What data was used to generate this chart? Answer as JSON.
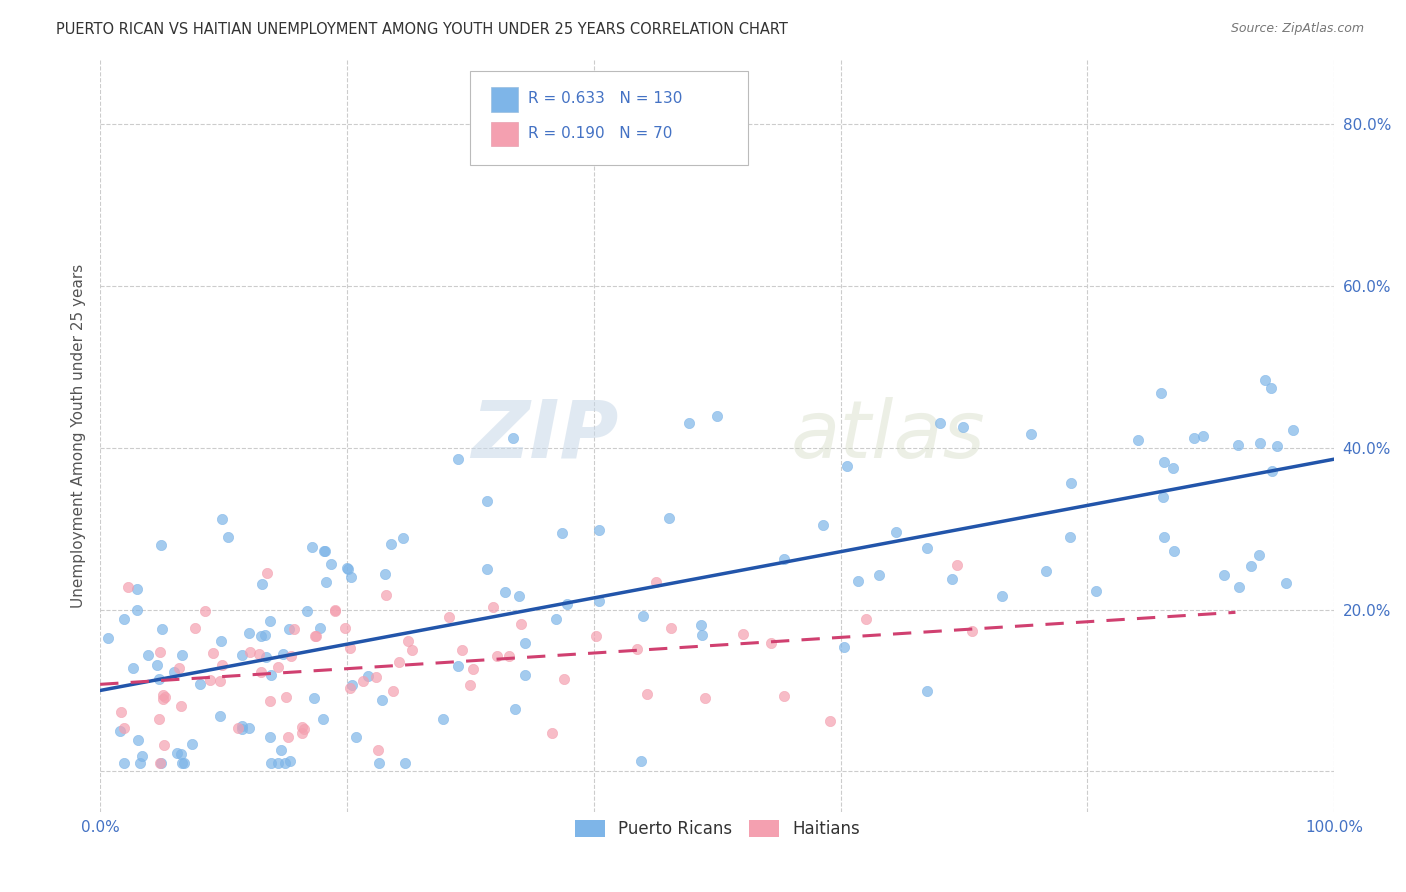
{
  "title": "PUERTO RICAN VS HAITIAN UNEMPLOYMENT AMONG YOUTH UNDER 25 YEARS CORRELATION CHART",
  "source": "Source: ZipAtlas.com",
  "ylabel": "Unemployment Among Youth under 25 years",
  "xlim": [
    0,
    1.0
  ],
  "ylim": [
    -0.05,
    0.88
  ],
  "xticks": [
    0.0,
    0.2,
    0.4,
    0.6,
    0.8,
    1.0
  ],
  "yticks": [
    0.0,
    0.2,
    0.4,
    0.6,
    0.8
  ],
  "pr_color": "#7EB5E8",
  "pr_color_line": "#2255AA",
  "haiti_color": "#F4A0B0",
  "haiti_color_line": "#D04070",
  "pr_R": 0.633,
  "pr_N": 130,
  "haiti_R": 0.19,
  "haiti_N": 70,
  "legend_label_pr": "Puerto Ricans",
  "legend_label_haiti": "Haitians",
  "watermark_zip": "ZIP",
  "watermark_atlas": "atlas",
  "background_color": "#FFFFFF",
  "grid_color": "#CCCCCC",
  "title_color": "#333333",
  "axis_color": "#4472C4",
  "seed_pr": 12,
  "seed_haiti": 55
}
